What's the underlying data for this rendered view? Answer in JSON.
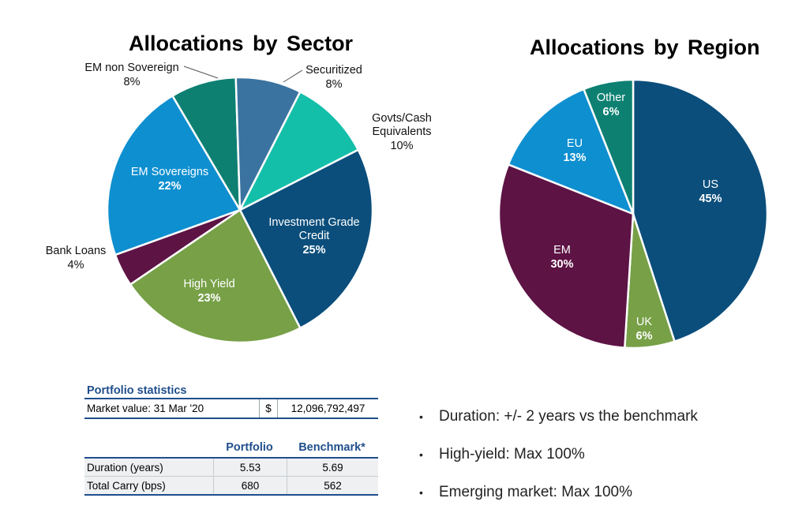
{
  "chart_data": [
    {
      "type": "pie",
      "title": "Allocations by Sector",
      "slices": [
        {
          "label": "Investment Grade Credit",
          "value": 25,
          "value_label": "25%",
          "color": "#0b4e7b"
        },
        {
          "label": "High Yield",
          "value": 23,
          "value_label": "23%",
          "color": "#77a047"
        },
        {
          "label": "Bank Loans",
          "value": 4,
          "value_label": "4%",
          "color": "#5d1344"
        },
        {
          "label": "EM Sovereigns",
          "value": 22,
          "value_label": "22%",
          "color": "#0e8fd0"
        },
        {
          "label": "EM non Sovereign",
          "value": 8,
          "value_label": "8%",
          "color": "#0d8072"
        },
        {
          "label": "Securitized",
          "value": 8,
          "value_label": "8%",
          "color": "#3a73a0"
        },
        {
          "label": "Govts/Cash Equivalents",
          "value": 10,
          "value_label": "10%",
          "color": "#14bfaa"
        }
      ]
    },
    {
      "type": "pie",
      "title": "Allocations by Region",
      "slices": [
        {
          "label": "US",
          "value": 45,
          "value_label": "45%",
          "color": "#0b4e7b"
        },
        {
          "label": "UK",
          "value": 6,
          "value_label": "6%",
          "color": "#77a047"
        },
        {
          "label": "EM",
          "value": 30,
          "value_label": "30%",
          "color": "#5d1344"
        },
        {
          "label": "EU",
          "value": 13,
          "value_label": "13%",
          "color": "#0e8fd0"
        },
        {
          "label": "Other",
          "value": 6,
          "value_label": "6%",
          "color": "#0d8072"
        }
      ]
    }
  ],
  "portfolio_statistics": {
    "title": "Portfolio statistics",
    "market_value_label": "Market value: 31 Mar '20",
    "currency": "$",
    "market_value": "12,096,792,497",
    "columns": [
      "Portfolio",
      "Benchmark*"
    ],
    "rows": [
      {
        "label": "Duration (years)",
        "portfolio": "5.53",
        "benchmark": "5.69"
      },
      {
        "label": "Total Carry (bps)",
        "portfolio": "680",
        "benchmark": "562"
      }
    ]
  },
  "bullets": [
    "Duration: +/- 2 years vs the benchmark",
    "High-yield: Max 100%",
    "Emerging market: Max 100%"
  ]
}
